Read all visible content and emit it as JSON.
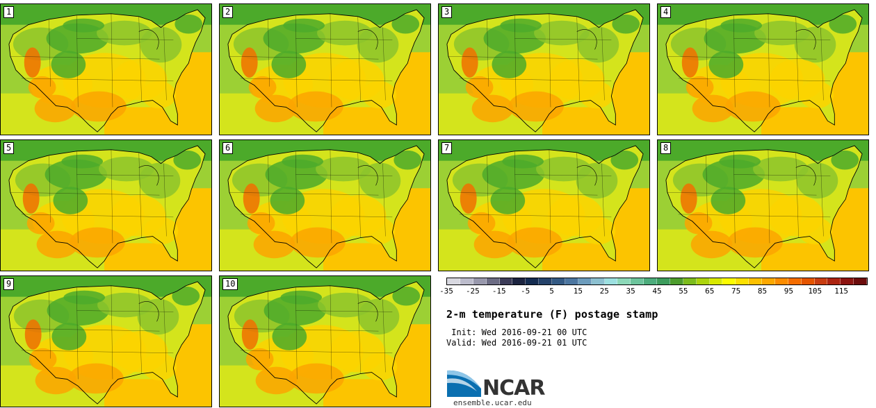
{
  "title": "2-m temperature (F) postage stamp",
  "init_time": " Init: Wed 2016-09-21 00 UTC",
  "valid_time": "Valid: Wed 2016-09-21 01 UTC",
  "logo": {
    "name": "NCAR",
    "url": "ensemble.ucar.edu",
    "colors": {
      "blue": "#0a6fb0",
      "light_blue": "#8fc6e8",
      "text": "#333333"
    }
  },
  "panels": [
    {
      "label": "1"
    },
    {
      "label": "2"
    },
    {
      "label": "3"
    },
    {
      "label": "4"
    },
    {
      "label": "5"
    },
    {
      "label": "6"
    },
    {
      "label": "7"
    },
    {
      "label": "8"
    },
    {
      "label": "9"
    },
    {
      "label": "10"
    }
  ],
  "colorbar": {
    "tick_labels": [
      "-35",
      "-25",
      "-15",
      "-5",
      "5",
      "15",
      "25",
      "35",
      "45",
      "55",
      "65",
      "75",
      "85",
      "95",
      "105",
      "115"
    ],
    "tick_values": [
      -35,
      -25,
      -15,
      -5,
      5,
      15,
      25,
      35,
      45,
      55,
      65,
      75,
      85,
      95,
      105,
      115
    ],
    "range": [
      -35,
      125
    ],
    "colors": [
      "#d8d8e0",
      "#bcbccc",
      "#9898ac",
      "#6c6c84",
      "#3c3c58",
      "#1c2440",
      "#142c50",
      "#24426a",
      "#345a84",
      "#4c76a0",
      "#6c9cbc",
      "#8cc0d0",
      "#9ce0e0",
      "#8cd8b8",
      "#6cc49c",
      "#4cac7c",
      "#3c9c5c",
      "#4c9c2c",
      "#7cbc1c",
      "#acd40c",
      "#d8e800",
      "#fcfc00",
      "#fce000",
      "#fcc000",
      "#fca800",
      "#fc8c00",
      "#f46c00",
      "#e45400",
      "#c83c10",
      "#ac2410",
      "#8c1410",
      "#6c0c0c"
    ]
  },
  "map_colors": {
    "cool": "#4caa2a",
    "mild": "#8cc42c",
    "warm": "#d4e41c",
    "hot": "#fcd400",
    "hotter": "#fca400",
    "hottest": "#f07000",
    "ocean_mild": "#fcc400",
    "ocean_cool": "#9cd034",
    "border": "#000000"
  }
}
